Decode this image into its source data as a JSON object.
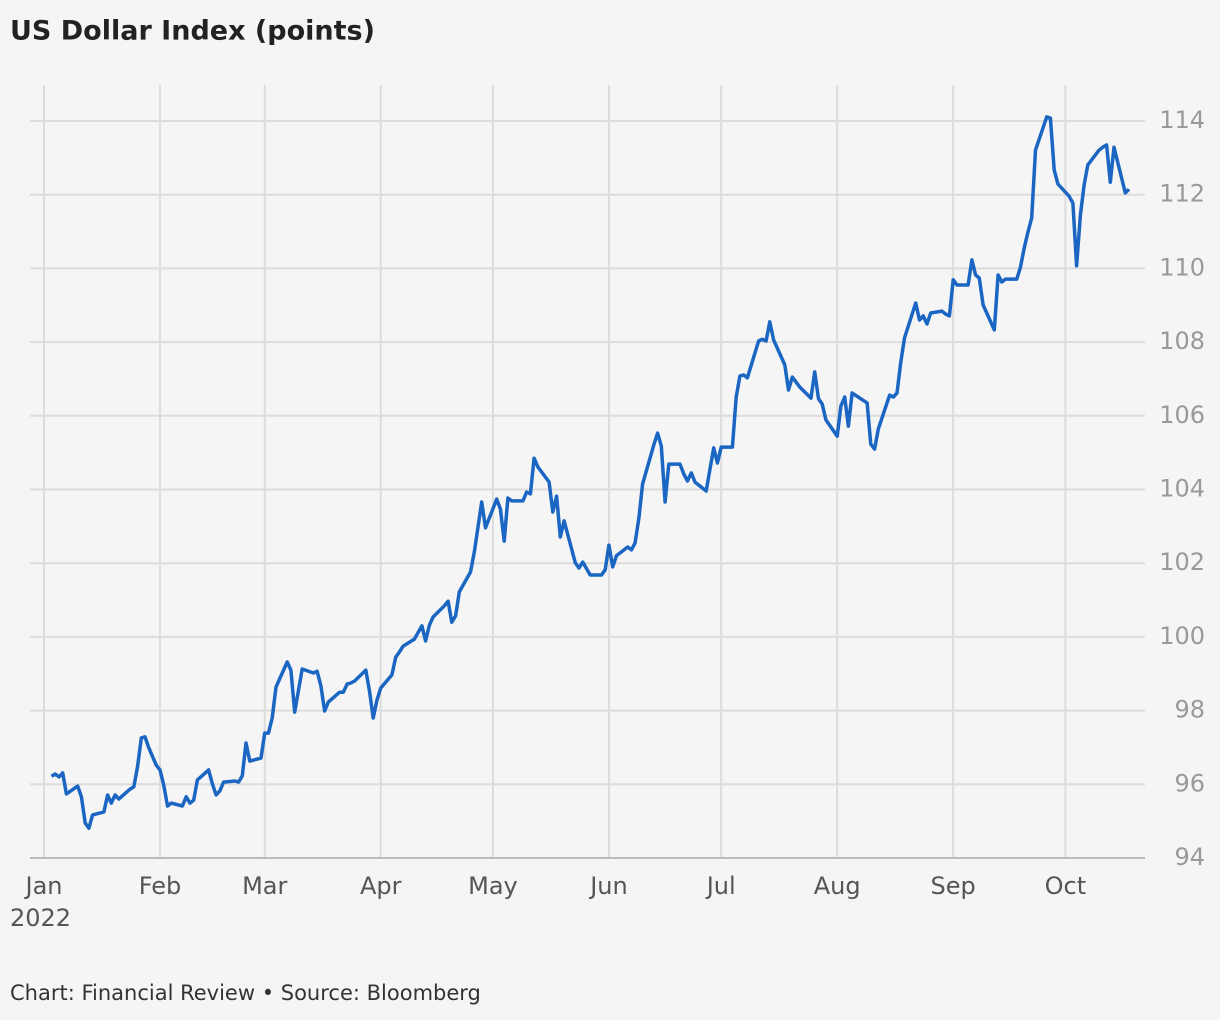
{
  "chart_data": {
    "type": "line",
    "title": "US Dollar Index (points)",
    "footer": "Chart: Financial Review • Source: Bloomberg",
    "year_label": "2022",
    "grid": true,
    "xlim": [
      0,
      290
    ],
    "ylim": [
      94,
      114
    ],
    "yticks": [
      94,
      96,
      98,
      100,
      102,
      104,
      106,
      108,
      110,
      112,
      114
    ],
    "xticks": [
      {
        "value": 0,
        "label": "Jan"
      },
      {
        "value": 31,
        "label": "Feb"
      },
      {
        "value": 59,
        "label": "Mar"
      },
      {
        "value": 90,
        "label": "Apr"
      },
      {
        "value": 120,
        "label": "May"
      },
      {
        "value": 151,
        "label": "Jun"
      },
      {
        "value": 181,
        "label": "Jul"
      },
      {
        "value": 212,
        "label": "Aug"
      },
      {
        "value": 243,
        "label": "Sep"
      },
      {
        "value": 273,
        "label": "Oct"
      }
    ],
    "x": [
      2,
      3,
      4,
      5,
      6,
      9,
      10,
      11,
      12,
      13,
      16,
      17,
      18,
      19,
      20,
      23,
      24,
      25,
      26,
      27,
      28,
      30,
      31,
      32,
      33,
      34,
      37,
      38,
      39,
      40,
      41,
      44,
      45,
      46,
      47,
      48,
      51,
      52,
      53,
      54,
      55,
      58,
      59,
      60,
      61,
      62,
      65,
      66,
      67,
      69,
      72,
      73,
      74,
      75,
      76,
      79,
      80,
      81,
      82,
      83,
      86,
      87,
      88,
      89,
      90,
      93,
      94,
      95,
      96,
      99,
      101,
      102,
      103,
      104,
      107,
      108,
      109,
      110,
      111,
      114,
      115,
      117,
      118,
      121,
      122,
      123,
      124,
      125,
      128,
      129,
      130,
      131,
      132,
      135,
      136,
      137,
      138,
      139,
      142,
      143,
      144,
      146,
      149,
      150,
      151,
      152,
      153,
      156,
      157,
      158,
      159,
      160,
      163,
      164,
      165,
      166,
      167,
      170,
      171,
      172,
      173,
      174,
      177,
      178,
      179,
      180,
      181,
      184,
      185,
      186,
      187,
      188,
      191,
      192,
      193,
      194,
      195,
      198,
      199,
      200,
      202,
      205,
      206,
      207,
      208,
      209,
      212,
      213,
      214,
      215,
      216,
      220,
      221,
      222,
      223,
      226,
      227,
      228,
      229,
      230,
      233,
      234,
      235,
      236,
      237,
      240,
      241,
      242,
      243,
      244,
      247,
      248,
      249,
      250,
      251,
      254,
      255,
      256,
      257,
      260,
      261,
      262,
      263,
      264,
      265,
      268,
      269,
      270,
      271,
      274,
      275,
      276,
      277,
      278,
      279,
      282,
      283,
      284,
      285,
      286,
      289,
      290
    ],
    "series": [
      {
        "name": "US Dollar Index",
        "color": "#1a66c2",
        "values": [
          96.22,
          96.28,
          96.2,
          96.31,
          95.74,
          95.95,
          95.66,
          94.95,
          94.81,
          95.17,
          95.25,
          95.71,
          95.49,
          95.71,
          95.6,
          95.87,
          95.93,
          96.47,
          97.26,
          97.29,
          96.99,
          96.52,
          96.39,
          95.98,
          95.41,
          95.49,
          95.41,
          95.66,
          95.49,
          95.57,
          96.12,
          96.39,
          96.01,
          95.71,
          95.82,
          96.06,
          96.09,
          96.06,
          96.23,
          97.12,
          96.63,
          96.71,
          97.39,
          97.39,
          97.8,
          98.64,
          99.32,
          99.1,
          97.96,
          99.13,
          99.02,
          99.07,
          98.67,
          97.99,
          98.23,
          98.5,
          98.5,
          98.72,
          98.75,
          98.8,
          99.1,
          98.53,
          97.8,
          98.29,
          98.61,
          98.97,
          99.45,
          99.59,
          99.75,
          99.94,
          100.3,
          99.89,
          100.32,
          100.54,
          100.84,
          100.97,
          100.4,
          100.57,
          101.22,
          101.76,
          102.3,
          103.66,
          102.96,
          103.74,
          103.47,
          102.6,
          103.77,
          103.69,
          103.69,
          103.93,
          103.88,
          104.85,
          104.61,
          104.2,
          103.39,
          103.82,
          102.71,
          103.15,
          102.01,
          101.87,
          102.03,
          101.68,
          101.68,
          101.82,
          102.49,
          101.9,
          102.2,
          102.44,
          102.36,
          102.55,
          103.23,
          104.15,
          105.21,
          105.53,
          105.18,
          103.66,
          104.69,
          104.69,
          104.42,
          104.23,
          104.45,
          104.2,
          103.96,
          104.56,
          105.13,
          104.72,
          105.15,
          105.15,
          106.51,
          107.08,
          107.11,
          107.03,
          108.03,
          108.08,
          108.03,
          108.55,
          108.06,
          107.38,
          106.7,
          107.05,
          106.78,
          106.48,
          107.19,
          106.46,
          106.32,
          105.89,
          105.45,
          106.27,
          106.51,
          105.72,
          106.62,
          106.35,
          105.23,
          105.1,
          105.64,
          106.56,
          106.51,
          106.62,
          107.46,
          108.11,
          109.06,
          108.6,
          108.71,
          108.49,
          108.79,
          108.84,
          108.76,
          108.71,
          109.69,
          109.55,
          109.55,
          110.23,
          109.82,
          109.74,
          109.01,
          108.33,
          109.82,
          109.63,
          109.71,
          109.71,
          110.04,
          110.55,
          110.99,
          111.37,
          113.21,
          114.11,
          114.08,
          112.67,
          112.29,
          111.96,
          111.77,
          110.07,
          111.45,
          112.26,
          112.81,
          113.21,
          113.29,
          113.35,
          112.34,
          113.29,
          112.05,
          112.15
        ]
      }
    ]
  }
}
